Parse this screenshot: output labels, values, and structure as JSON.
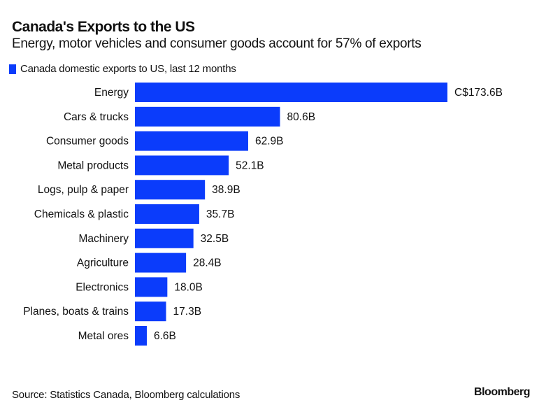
{
  "colors": {
    "bar": "#0b3cfb",
    "text": "#111111"
  },
  "chart_data": {
    "type": "bar",
    "orientation": "horizontal",
    "title": "Canada's Exports to the US",
    "subtitle": "Energy, motor vehicles and consumer goods account for 57% of exports",
    "legend": [
      {
        "name": "Canada domestic exports to US, last 12 months",
        "placement": "top-left"
      }
    ],
    "unit": "C$ billions",
    "categories": [
      "Energy",
      "Cars & trucks",
      "Consumer goods",
      "Metal products",
      "Logs, pulp & paper",
      "Chemicals & plastic",
      "Machinery",
      "Agriculture",
      "Electronics",
      "Planes, boats & trains",
      "Metal ores"
    ],
    "values": [
      173.6,
      80.6,
      62.9,
      52.1,
      38.9,
      35.7,
      32.5,
      28.4,
      18.0,
      17.3,
      6.6
    ],
    "data_labels": [
      "C$173.6B",
      "80.6B",
      "62.9B",
      "52.1B",
      "38.9B",
      "35.7B",
      "32.5B",
      "28.4B",
      "18.0B",
      "17.3B",
      "6.6B"
    ],
    "grid": false,
    "source": "Source: Statistics Canada, Bloomberg calculations"
  },
  "branding": {
    "logo": "Bloomberg"
  }
}
